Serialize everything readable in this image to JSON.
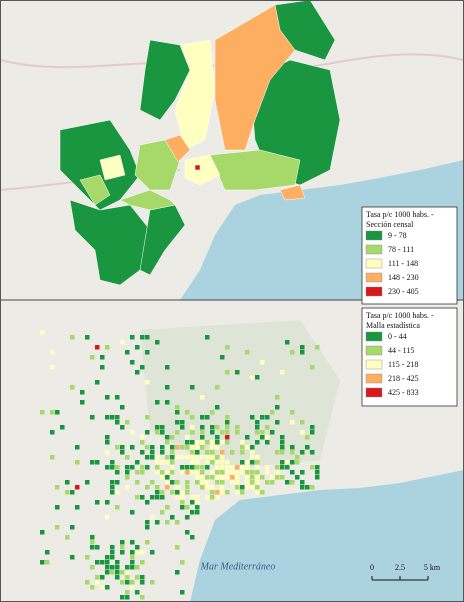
{
  "maps": [
    {
      "legend": {
        "title_lines": [
          "Tasa p/c 1000 habs. -",
          "Sección censal"
        ],
        "classes": [
          {
            "label": "9 - 78",
            "color": "#1a9641"
          },
          {
            "label": "78 - 111",
            "color": "#a6d96a"
          },
          {
            "label": "111 - 148",
            "color": "#ffffbf"
          },
          {
            "label": "148 - 230",
            "color": "#fdae61"
          },
          {
            "label": "230 - 405",
            "color": "#d7191c"
          }
        ]
      }
    },
    {
      "legend": {
        "title_lines": [
          "Tasa p/c 1000 habs. -",
          "Malla estadística"
        ],
        "classes": [
          {
            "label": "0 - 44",
            "color": "#1a9641"
          },
          {
            "label": "44 - 115",
            "color": "#a6d96a"
          },
          {
            "label": "115 - 218",
            "color": "#ffffbf"
          },
          {
            "label": "218 - 425",
            "color": "#fdae61"
          },
          {
            "label": "425 - 833",
            "color": "#d7191c"
          }
        ]
      },
      "sea_label": "Mar Mediterráneo",
      "scale_bar": [
        "0",
        "2.5",
        "5 km"
      ]
    }
  ]
}
